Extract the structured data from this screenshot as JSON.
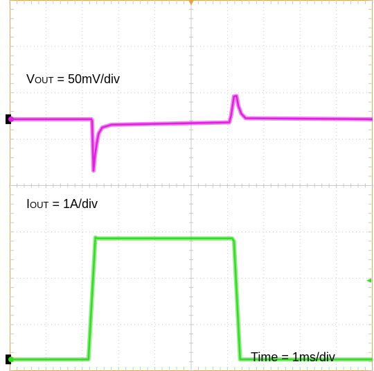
{
  "labels": {
    "vout": {
      "prefix": "V",
      "sub": "OUT",
      "rest": " = 50mV/div"
    },
    "iout": {
      "prefix": "I",
      "sub": "OUT",
      "rest": " = 1A/div"
    },
    "time": "Time = 1ms/div"
  },
  "colors": {
    "grid": "#c8c8c8",
    "frame": "#e2a64a",
    "vout": "#e020e0",
    "iout": "#33dd22",
    "background": "#ffffff"
  },
  "chart_data": {
    "type": "line",
    "grid": {
      "x_divisions": 10,
      "y_divisions": 8,
      "minor_ticks_per_division": 5
    },
    "x_unit": "ms",
    "x_per_division": 1,
    "xlim": [
      0,
      10
    ],
    "series": [
      {
        "label": "VOUT = 50mV/div",
        "units": "div",
        "points": [
          [
            0,
            5.43
          ],
          [
            2.25,
            5.43
          ],
          [
            2.27,
            5.4
          ],
          [
            2.31,
            4.32
          ],
          [
            2.35,
            4.65
          ],
          [
            2.4,
            4.92
          ],
          [
            2.45,
            5.12
          ],
          [
            2.55,
            5.25
          ],
          [
            2.8,
            5.31
          ],
          [
            4.0,
            5.33
          ],
          [
            6.05,
            5.36
          ],
          [
            6.1,
            5.5
          ],
          [
            6.18,
            5.92
          ],
          [
            6.25,
            5.93
          ],
          [
            6.3,
            5.72
          ],
          [
            6.38,
            5.55
          ],
          [
            6.5,
            5.45
          ],
          [
            10,
            5.43
          ]
        ]
      },
      {
        "label": "IOUT = 1A/div",
        "units": "div",
        "points": [
          [
            0,
            0.25
          ],
          [
            2.17,
            0.25
          ],
          [
            2.36,
            2.88
          ],
          [
            2.42,
            2.86
          ],
          [
            6.13,
            2.86
          ],
          [
            6.18,
            2.8
          ],
          [
            6.35,
            0.25
          ],
          [
            10,
            0.25
          ]
        ]
      }
    ]
  }
}
